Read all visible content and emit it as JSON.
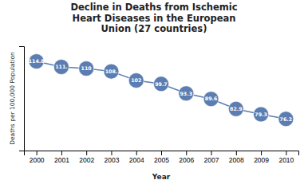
{
  "chart_data": {
    "type": "line",
    "title": "Decline in Deaths from Ischemic\nHeart Diseases in the European\nUnion (27 countries)",
    "x_label": "Year",
    "y_label": "Deaths per 100,000 Population",
    "x": [
      2000,
      2001,
      2002,
      2003,
      2004,
      2005,
      2006,
      2007,
      2008,
      2009,
      2010
    ],
    "values": [
      114.8,
      111.1,
      110.0,
      108.1,
      102.0,
      99.7,
      93.3,
      89.6,
      82.9,
      79.3,
      76.2
    ],
    "value_labels": [
      "114.8",
      "111.",
      "110",
      "108.",
      "102",
      "99.7",
      "93.3",
      "89.6",
      "82.9",
      "79.3",
      "76.2"
    ],
    "data_labels": true,
    "color": "#5b7db1",
    "marker": "circle",
    "xlim": [
      1999.5,
      2010.5
    ],
    "xticks": [
      2000,
      2001,
      2002,
      2003,
      2004,
      2005,
      2006,
      2007,
      2008,
      2009,
      2010
    ],
    "ylim": [
      55,
      125
    ],
    "yticks": [],
    "tick_labels": "x",
    "grid": false
  }
}
